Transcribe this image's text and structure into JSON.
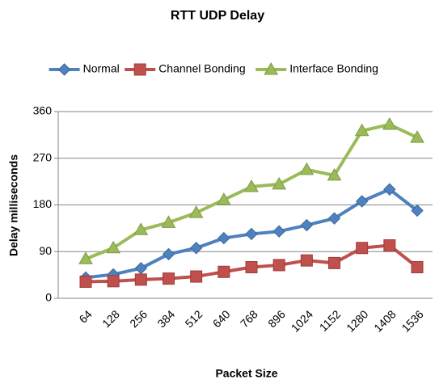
{
  "chart_data": {
    "type": "line",
    "title": "RTT UDP Delay",
    "x_label": "Packet Size",
    "y_label": "Delay milliseconds",
    "categories": [
      "64",
      "128",
      "256",
      "384",
      "512",
      "640",
      "768",
      "896",
      "1024",
      "1152",
      "1280",
      "1408",
      "1536"
    ],
    "series": [
      {
        "name": "Normal",
        "color": "#4f81bd",
        "marker": "diamond",
        "values": [
          40,
          46,
          58,
          85,
          97,
          116,
          124,
          129,
          141,
          154,
          187,
          210,
          169
        ]
      },
      {
        "name": "Channel Bonding",
        "color": "#c0504d",
        "marker": "square",
        "values": [
          32,
          33,
          36,
          38,
          42,
          51,
          60,
          64,
          73,
          68,
          97,
          102,
          60
        ]
      },
      {
        "name": "Interface Bonding",
        "color": "#9bbb59",
        "marker": "triangle",
        "values": [
          76,
          97,
          132,
          146,
          165,
          190,
          215,
          220,
          248,
          237,
          323,
          335,
          310
        ]
      }
    ],
    "ylim": [
      0,
      360
    ],
    "yticks": [
      0,
      90,
      180,
      270,
      360
    ],
    "grid": true,
    "legend": "top"
  }
}
